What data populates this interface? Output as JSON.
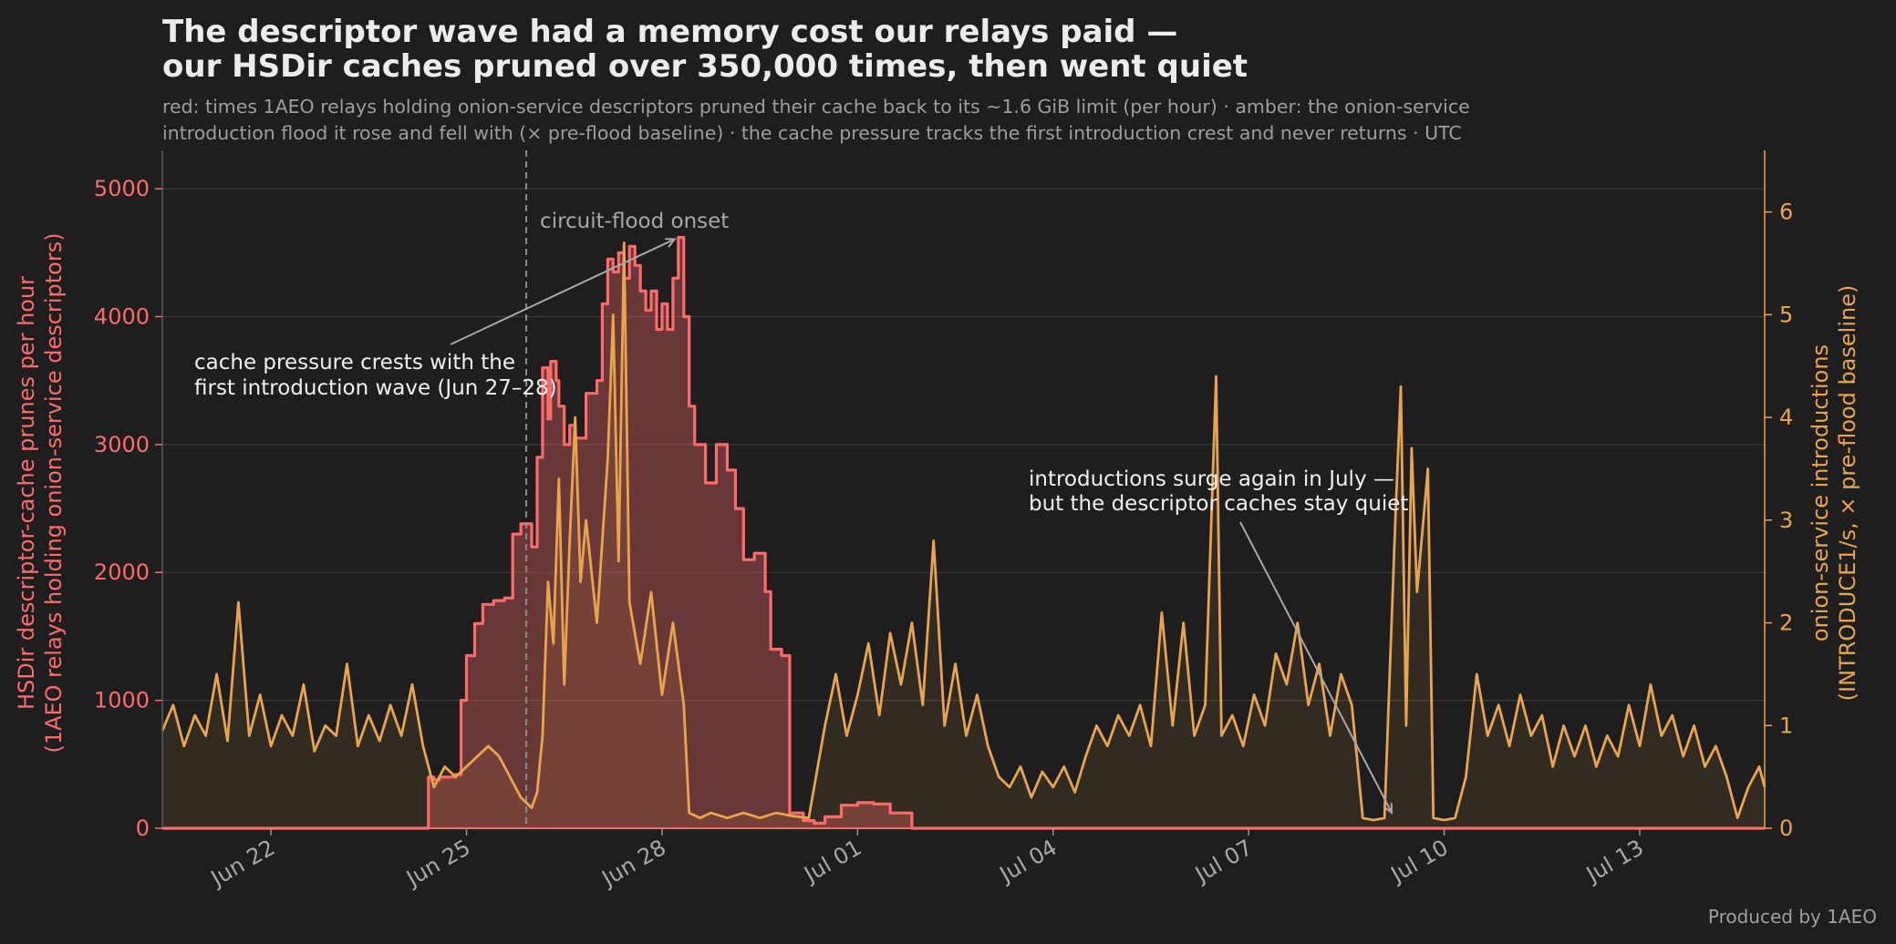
{
  "chart_data": {
    "type": "line",
    "title_lines": [
      "The descriptor wave had a memory cost our relays paid —",
      "our HSDir caches pruned over 350,000 times, then went quiet"
    ],
    "subtitle_lines": [
      "red: times 1AEO relays holding onion-service descriptors pruned their cache back to its ~1.6 GiB limit (per hour) · amber: the onion-service",
      "introduction flood it rose and fell with (× pre-flood baseline) · the cache pressure tracks the first introduction crest and never returns · UTC"
    ],
    "ylabel_left_lines": [
      "HSDir descriptor-cache prunes per hour",
      "(1AEO relays holding onion-service descriptors)"
    ],
    "ylabel_right_lines": [
      "onion-service introductions",
      "(INTRODUCE1/s, × pre-flood baseline)"
    ],
    "x_range": [
      "2026-06-20T08:00",
      "2026-07-14T22:00"
    ],
    "x_ticks": [
      {
        "t": "2026-06-22",
        "label": "Jun 22"
      },
      {
        "t": "2026-06-25",
        "label": "Jun 25"
      },
      {
        "t": "2026-06-28",
        "label": "Jun 28"
      },
      {
        "t": "2026-07-01",
        "label": "Jul 01"
      },
      {
        "t": "2026-07-04",
        "label": "Jul 04"
      },
      {
        "t": "2026-07-07",
        "label": "Jul 07"
      },
      {
        "t": "2026-07-10",
        "label": "Jul 10"
      },
      {
        "t": "2026-07-13",
        "label": "Jul 13"
      }
    ],
    "y_left": {
      "lim": [
        0,
        5300
      ],
      "ticks": [
        0,
        1000,
        2000,
        3000,
        4000,
        5000
      ]
    },
    "y_right": {
      "lim": [
        0,
        6.6
      ],
      "ticks": [
        0,
        1,
        2,
        3,
        4,
        5,
        6
      ]
    },
    "grid": true,
    "series": [
      {
        "axis": "left",
        "color": "#ff6b6b",
        "step": true,
        "points": [
          [
            "2026-06-20T08:00",
            0
          ],
          [
            "2026-06-24T08:00",
            0
          ],
          [
            "2026-06-24T10:00",
            400
          ],
          [
            "2026-06-24T12:00",
            380
          ],
          [
            "2026-06-24T14:00",
            400
          ],
          [
            "2026-06-24T20:00",
            420
          ],
          [
            "2026-06-24T22:00",
            1000
          ],
          [
            "2026-06-25T00:00",
            1350
          ],
          [
            "2026-06-25T03:00",
            1600
          ],
          [
            "2026-06-25T06:00",
            1750
          ],
          [
            "2026-06-25T10:00",
            1780
          ],
          [
            "2026-06-25T14:00",
            1800
          ],
          [
            "2026-06-25T17:00",
            2300
          ],
          [
            "2026-06-25T20:00",
            2380
          ],
          [
            "2026-06-26T00:00",
            2200
          ],
          [
            "2026-06-26T02:00",
            2900
          ],
          [
            "2026-06-26T04:00",
            3600
          ],
          [
            "2026-06-26T06:00",
            3200
          ],
          [
            "2026-06-26T07:00",
            3650
          ],
          [
            "2026-06-26T09:00",
            3500
          ],
          [
            "2026-06-26T10:00",
            3300
          ],
          [
            "2026-06-26T12:00",
            3000
          ],
          [
            "2026-06-26T14:00",
            3150
          ],
          [
            "2026-06-26T16:00",
            3050
          ],
          [
            "2026-06-26T20:00",
            3400
          ],
          [
            "2026-06-27T00:00",
            3500
          ],
          [
            "2026-06-27T02:00",
            4100
          ],
          [
            "2026-06-27T04:00",
            4450
          ],
          [
            "2026-06-27T06:00",
            4350
          ],
          [
            "2026-06-27T08:00",
            4500
          ],
          [
            "2026-06-27T10:00",
            4300
          ],
          [
            "2026-06-27T12:00",
            4550
          ],
          [
            "2026-06-27T14:00",
            4400
          ],
          [
            "2026-06-27T16:00",
            4200
          ],
          [
            "2026-06-27T18:00",
            4050
          ],
          [
            "2026-06-27T20:00",
            4200
          ],
          [
            "2026-06-27T22:00",
            3900
          ],
          [
            "2026-06-28T00:00",
            4100
          ],
          [
            "2026-06-28T02:00",
            3900
          ],
          [
            "2026-06-28T04:00",
            4300
          ],
          [
            "2026-06-28T06:00",
            4620
          ],
          [
            "2026-06-28T08:00",
            4000
          ],
          [
            "2026-06-28T10:00",
            3300
          ],
          [
            "2026-06-28T12:00",
            3000
          ],
          [
            "2026-06-28T16:00",
            2700
          ],
          [
            "2026-06-28T20:00",
            3000
          ],
          [
            "2026-06-29T00:00",
            2800
          ],
          [
            "2026-06-29T03:00",
            2500
          ],
          [
            "2026-06-29T06:00",
            2100
          ],
          [
            "2026-06-29T10:00",
            2150
          ],
          [
            "2026-06-29T14:00",
            1850
          ],
          [
            "2026-06-29T16:00",
            1400
          ],
          [
            "2026-06-29T20:00",
            1350
          ],
          [
            "2026-06-29T23:00",
            120
          ],
          [
            "2026-06-30T04:00",
            60
          ],
          [
            "2026-06-30T08:00",
            40
          ],
          [
            "2026-06-30T12:00",
            90
          ],
          [
            "2026-06-30T18:00",
            180
          ],
          [
            "2026-07-01T00:00",
            200
          ],
          [
            "2026-07-01T06:00",
            190
          ],
          [
            "2026-07-01T12:00",
            120
          ],
          [
            "2026-07-01T20:00",
            0
          ],
          [
            "2026-07-14T22:00",
            0
          ]
        ]
      },
      {
        "axis": "right",
        "color": "#e9a54b",
        "step": false,
        "points": [
          [
            "2026-06-20T08:00",
            0.95
          ],
          [
            "2026-06-20T12:00",
            1.2
          ],
          [
            "2026-06-20T16:00",
            0.8
          ],
          [
            "2026-06-20T20:00",
            1.1
          ],
          [
            "2026-06-21T00:00",
            0.9
          ],
          [
            "2026-06-21T04:00",
            1.5
          ],
          [
            "2026-06-21T08:00",
            0.85
          ],
          [
            "2026-06-21T12:00",
            2.2
          ],
          [
            "2026-06-21T16:00",
            0.9
          ],
          [
            "2026-06-21T20:00",
            1.3
          ],
          [
            "2026-06-22T00:00",
            0.8
          ],
          [
            "2026-06-22T04:00",
            1.1
          ],
          [
            "2026-06-22T08:00",
            0.9
          ],
          [
            "2026-06-22T12:00",
            1.4
          ],
          [
            "2026-06-22T16:00",
            0.75
          ],
          [
            "2026-06-22T20:00",
            1.0
          ],
          [
            "2026-06-23T00:00",
            0.9
          ],
          [
            "2026-06-23T04:00",
            1.6
          ],
          [
            "2026-06-23T08:00",
            0.8
          ],
          [
            "2026-06-23T12:00",
            1.1
          ],
          [
            "2026-06-23T16:00",
            0.85
          ],
          [
            "2026-06-23T20:00",
            1.2
          ],
          [
            "2026-06-24T00:00",
            0.9
          ],
          [
            "2026-06-24T04:00",
            1.4
          ],
          [
            "2026-06-24T08:00",
            0.8
          ],
          [
            "2026-06-24T12:00",
            0.4
          ],
          [
            "2026-06-24T16:00",
            0.6
          ],
          [
            "2026-06-24T20:00",
            0.5
          ],
          [
            "2026-06-25T00:00",
            0.6
          ],
          [
            "2026-06-25T04:00",
            0.7
          ],
          [
            "2026-06-25T08:00",
            0.8
          ],
          [
            "2026-06-25T12:00",
            0.7
          ],
          [
            "2026-06-25T16:00",
            0.5
          ],
          [
            "2026-06-25T20:00",
            0.3
          ],
          [
            "2026-06-26T00:00",
            0.2
          ],
          [
            "2026-06-26T02:00",
            0.35
          ],
          [
            "2026-06-26T04:00",
            0.9
          ],
          [
            "2026-06-26T06:00",
            2.4
          ],
          [
            "2026-06-26T08:00",
            1.8
          ],
          [
            "2026-06-26T10:00",
            3.4
          ],
          [
            "2026-06-26T12:00",
            1.4
          ],
          [
            "2026-06-26T14:00",
            2.8
          ],
          [
            "2026-06-26T16:00",
            4.0
          ],
          [
            "2026-06-26T18:00",
            2.4
          ],
          [
            "2026-06-26T20:00",
            3.0
          ],
          [
            "2026-06-27T00:00",
            2.0
          ],
          [
            "2026-06-27T04:00",
            3.6
          ],
          [
            "2026-06-27T06:00",
            5.0
          ],
          [
            "2026-06-27T08:00",
            2.6
          ],
          [
            "2026-06-27T10:00",
            5.7
          ],
          [
            "2026-06-27T12:00",
            2.2
          ],
          [
            "2026-06-27T16:00",
            1.6
          ],
          [
            "2026-06-27T20:00",
            2.3
          ],
          [
            "2026-06-28T00:00",
            1.3
          ],
          [
            "2026-06-28T04:00",
            2.0
          ],
          [
            "2026-06-28T08:00",
            1.2
          ],
          [
            "2026-06-28T10:00",
            0.15
          ],
          [
            "2026-06-28T14:00",
            0.1
          ],
          [
            "2026-06-28T18:00",
            0.15
          ],
          [
            "2026-06-29T00:00",
            0.1
          ],
          [
            "2026-06-29T06:00",
            0.15
          ],
          [
            "2026-06-29T12:00",
            0.1
          ],
          [
            "2026-06-29T18:00",
            0.15
          ],
          [
            "2026-06-30T00:00",
            0.12
          ],
          [
            "2026-06-30T06:00",
            0.1
          ],
          [
            "2026-06-30T12:00",
            1.0
          ],
          [
            "2026-06-30T16:00",
            1.5
          ],
          [
            "2026-06-30T20:00",
            0.9
          ],
          [
            "2026-07-01T00:00",
            1.3
          ],
          [
            "2026-07-01T04:00",
            1.8
          ],
          [
            "2026-07-01T08:00",
            1.1
          ],
          [
            "2026-07-01T12:00",
            1.9
          ],
          [
            "2026-07-01T16:00",
            1.4
          ],
          [
            "2026-07-01T20:00",
            2.0
          ],
          [
            "2026-07-02T00:00",
            1.2
          ],
          [
            "2026-07-02T04:00",
            2.8
          ],
          [
            "2026-07-02T08:00",
            1.0
          ],
          [
            "2026-07-02T12:00",
            1.6
          ],
          [
            "2026-07-02T16:00",
            0.9
          ],
          [
            "2026-07-02T20:00",
            1.3
          ],
          [
            "2026-07-03T00:00",
            0.8
          ],
          [
            "2026-07-03T04:00",
            0.5
          ],
          [
            "2026-07-03T08:00",
            0.4
          ],
          [
            "2026-07-03T12:00",
            0.6
          ],
          [
            "2026-07-03T16:00",
            0.3
          ],
          [
            "2026-07-03T20:00",
            0.55
          ],
          [
            "2026-07-04T00:00",
            0.4
          ],
          [
            "2026-07-04T04:00",
            0.6
          ],
          [
            "2026-07-04T08:00",
            0.35
          ],
          [
            "2026-07-04T12:00",
            0.7
          ],
          [
            "2026-07-04T16:00",
            1.0
          ],
          [
            "2026-07-04T20:00",
            0.8
          ],
          [
            "2026-07-05T00:00",
            1.1
          ],
          [
            "2026-07-05T04:00",
            0.9
          ],
          [
            "2026-07-05T08:00",
            1.2
          ],
          [
            "2026-07-05T12:00",
            0.8
          ],
          [
            "2026-07-05T16:00",
            2.1
          ],
          [
            "2026-07-05T20:00",
            1.0
          ],
          [
            "2026-07-06T00:00",
            2.0
          ],
          [
            "2026-07-06T04:00",
            0.9
          ],
          [
            "2026-07-06T08:00",
            1.2
          ],
          [
            "2026-07-06T12:00",
            4.4
          ],
          [
            "2026-07-06T14:00",
            0.9
          ],
          [
            "2026-07-06T18:00",
            1.1
          ],
          [
            "2026-07-06T22:00",
            0.8
          ],
          [
            "2026-07-07T02:00",
            1.3
          ],
          [
            "2026-07-07T06:00",
            1.0
          ],
          [
            "2026-07-07T10:00",
            1.7
          ],
          [
            "2026-07-07T14:00",
            1.4
          ],
          [
            "2026-07-07T18:00",
            2.0
          ],
          [
            "2026-07-07T22:00",
            1.2
          ],
          [
            "2026-07-08T02:00",
            1.6
          ],
          [
            "2026-07-08T06:00",
            0.9
          ],
          [
            "2026-07-08T10:00",
            1.5
          ],
          [
            "2026-07-08T14:00",
            1.2
          ],
          [
            "2026-07-08T18:00",
            0.1
          ],
          [
            "2026-07-08T22:00",
            0.08
          ],
          [
            "2026-07-09T02:00",
            0.1
          ],
          [
            "2026-07-09T06:00",
            3.0
          ],
          [
            "2026-07-09T08:00",
            4.3
          ],
          [
            "2026-07-09T10:00",
            1.0
          ],
          [
            "2026-07-09T12:00",
            3.7
          ],
          [
            "2026-07-09T14:00",
            2.3
          ],
          [
            "2026-07-09T18:00",
            3.5
          ],
          [
            "2026-07-09T20:00",
            0.1
          ],
          [
            "2026-07-10T00:00",
            0.08
          ],
          [
            "2026-07-10T04:00",
            0.1
          ],
          [
            "2026-07-10T08:00",
            0.5
          ],
          [
            "2026-07-10T12:00",
            1.5
          ],
          [
            "2026-07-10T16:00",
            0.9
          ],
          [
            "2026-07-10T20:00",
            1.2
          ],
          [
            "2026-07-11T00:00",
            0.8
          ],
          [
            "2026-07-11T04:00",
            1.3
          ],
          [
            "2026-07-11T08:00",
            0.9
          ],
          [
            "2026-07-11T12:00",
            1.1
          ],
          [
            "2026-07-11T16:00",
            0.6
          ],
          [
            "2026-07-11T20:00",
            1.0
          ],
          [
            "2026-07-12T00:00",
            0.7
          ],
          [
            "2026-07-12T04:00",
            1.0
          ],
          [
            "2026-07-12T08:00",
            0.6
          ],
          [
            "2026-07-12T12:00",
            0.9
          ],
          [
            "2026-07-12T16:00",
            0.7
          ],
          [
            "2026-07-12T20:00",
            1.2
          ],
          [
            "2026-07-13T00:00",
            0.8
          ],
          [
            "2026-07-13T04:00",
            1.4
          ],
          [
            "2026-07-13T08:00",
            0.9
          ],
          [
            "2026-07-13T12:00",
            1.1
          ],
          [
            "2026-07-13T16:00",
            0.7
          ],
          [
            "2026-07-13T20:00",
            1.0
          ],
          [
            "2026-07-14T00:00",
            0.6
          ],
          [
            "2026-07-14T04:00",
            0.8
          ],
          [
            "2026-07-14T08:00",
            0.5
          ],
          [
            "2026-07-14T12:00",
            0.1
          ],
          [
            "2026-07-14T16:00",
            0.4
          ],
          [
            "2026-07-14T20:00",
            0.6
          ],
          [
            "2026-07-14T22:00",
            0.4
          ]
        ]
      }
    ],
    "annotations": [
      {
        "type": "vline",
        "t": "2026-06-25T22:00",
        "label": "circuit-flood onset"
      },
      {
        "type": "callout",
        "lines": [
          "cache pressure crests with the",
          "first introduction wave (Jun 27–28)"
        ],
        "target": {
          "t": "2026-06-28T06:00",
          "y": 4620,
          "axis": "left"
        }
      },
      {
        "type": "callout",
        "lines": [
          "introductions surge again in July —",
          "but the descriptor caches stay quiet"
        ],
        "target": {
          "t": "2026-07-09T06:00",
          "y": 0.1,
          "axis": "right"
        }
      }
    ],
    "footer": "Produced by 1AEO"
  }
}
